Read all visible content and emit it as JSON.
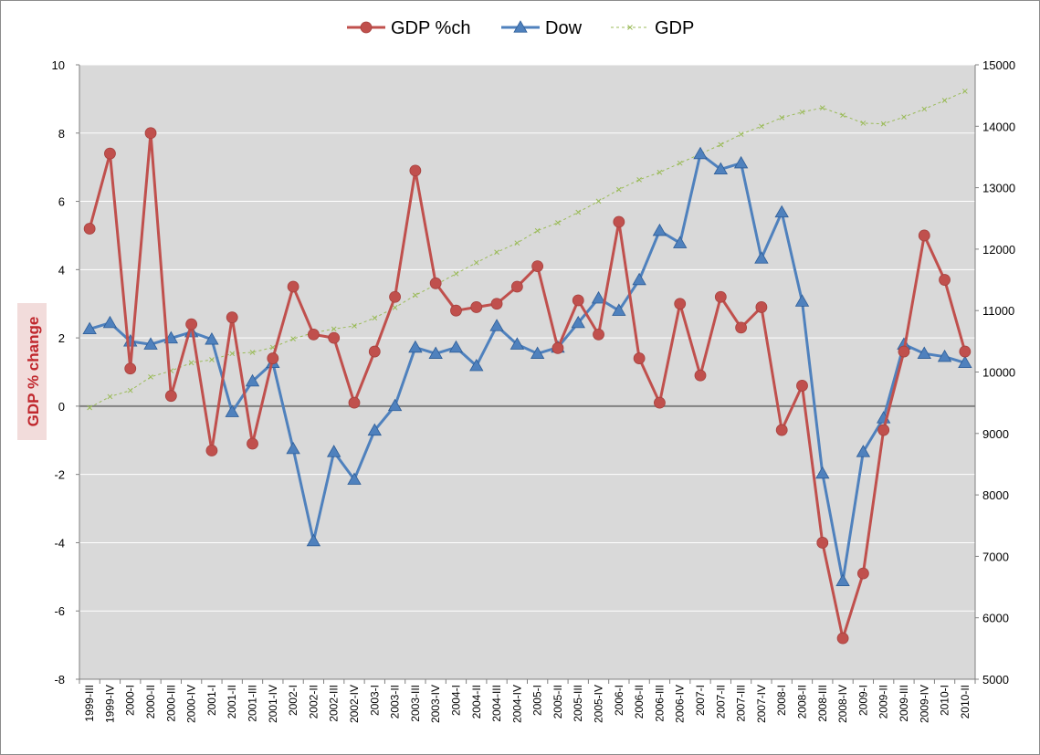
{
  "chart_data": {
    "type": "line",
    "title": "",
    "ylabel": "GDP % change",
    "y2label": "",
    "xlabel": "",
    "ylim": [
      -8,
      10
    ],
    "y2lim": [
      5000,
      15000
    ],
    "yticks": [
      "-8",
      "-6",
      "-4",
      "-2",
      "0",
      "2",
      "4",
      "6",
      "8",
      "10"
    ],
    "y2ticks": [
      "5000",
      "6000",
      "7000",
      "8000",
      "9000",
      "10000",
      "11000",
      "12000",
      "13000",
      "14000",
      "15000"
    ],
    "grid": true,
    "legend_position": "top-center",
    "categories": [
      "1999-III",
      "1999-IV",
      "2000-I",
      "2000-II",
      "2000-III",
      "2000-IV",
      "2001-I",
      "2001-II",
      "2001-III",
      "2001-IV",
      "2002-I",
      "2002-II",
      "2002-III",
      "2002-IV",
      "2003-I",
      "2003-II",
      "2003-III",
      "2003-IV",
      "2004-I",
      "2004-II",
      "2004-III",
      "2004-IV",
      "2005-I",
      "2005-II",
      "2005-III",
      "2005-IV",
      "2006-I",
      "2006-II",
      "2006-III",
      "2006-IV",
      "2007-I",
      "2007-II",
      "2007-III",
      "2007-IV",
      "2008-I",
      "2008-II",
      "2008-III",
      "2008-IV",
      "2009-I",
      "2009-II",
      "2009-III",
      "2009-IV",
      "2010-I",
      "2010-II"
    ],
    "series": [
      {
        "name": "GDP %ch",
        "axis": "left",
        "color": "#c0504d",
        "marker": "circle",
        "values": [
          5.2,
          7.4,
          1.1,
          8.0,
          0.3,
          2.4,
          -1.3,
          2.6,
          -1.1,
          1.4,
          3.5,
          2.1,
          2.0,
          0.1,
          1.6,
          3.2,
          6.9,
          3.6,
          2.8,
          2.9,
          3.0,
          3.5,
          4.1,
          1.7,
          3.1,
          2.1,
          5.4,
          1.4,
          0.1,
          3.0,
          0.9,
          3.2,
          2.3,
          2.9,
          -0.7,
          0.6,
          -4.0,
          -6.8,
          -4.9,
          -0.7,
          1.6,
          5.0,
          3.7,
          1.6
        ]
      },
      {
        "name": "Dow",
        "axis": "right",
        "color": "#4f81bd",
        "marker": "triangle",
        "values": [
          10700,
          10800,
          10500,
          10450,
          10550,
          10650,
          10530,
          9350,
          9850,
          10150,
          8750,
          7250,
          8700,
          8250,
          9050,
          9450,
          10400,
          10300,
          10400,
          10100,
          10750,
          10450,
          10300,
          10400,
          10800,
          11200,
          11000,
          11500,
          12300,
          12100,
          13550,
          13300,
          13400,
          11850,
          12600,
          11150,
          8350,
          6600,
          8700,
          9250,
          10450,
          10300,
          10250,
          10150
        ]
      },
      {
        "name": "GDP",
        "axis": "right",
        "color": "#9bbb59",
        "marker": "x",
        "dashed": true,
        "values": [
          9420,
          9600,
          9700,
          9920,
          10020,
          10150,
          10200,
          10300,
          10320,
          10400,
          10540,
          10640,
          10700,
          10750,
          10880,
          11050,
          11250,
          11420,
          11600,
          11780,
          11950,
          12100,
          12300,
          12430,
          12600,
          12780,
          12970,
          13130,
          13250,
          13400,
          13550,
          13700,
          13870,
          14000,
          14140,
          14230,
          14300,
          14180,
          14050,
          14040,
          14150,
          14280,
          14420,
          14570
        ]
      }
    ]
  }
}
